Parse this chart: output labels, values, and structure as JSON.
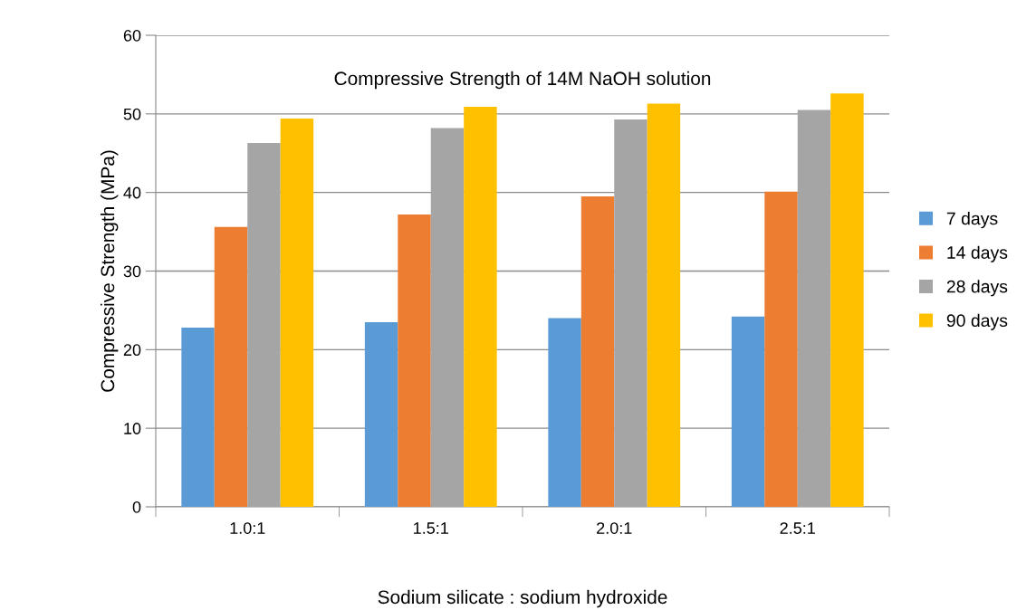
{
  "chart_data": {
    "type": "bar",
    "title": "Compressive Strength of 14M NaOH solution",
    "xlabel": "Sodium silicate : sodium hydroxide",
    "ylabel": "Compressive Strength (MPa)",
    "categories": [
      "1.0:1",
      "1.5:1",
      "2.0:1",
      "2.5:1"
    ],
    "series": [
      {
        "name": "7 days",
        "color": "#5b9bd5",
        "values": [
          22.8,
          23.5,
          24.0,
          24.2
        ]
      },
      {
        "name": "14 days",
        "color": "#ed7d31",
        "values": [
          35.6,
          37.2,
          39.5,
          40.1
        ]
      },
      {
        "name": "28 days",
        "color": "#a5a5a5",
        "values": [
          46.3,
          48.2,
          49.3,
          50.5
        ]
      },
      {
        "name": "90 days",
        "color": "#ffc000",
        "values": [
          49.4,
          50.9,
          51.3,
          52.6
        ]
      }
    ],
    "ylim": [
      0,
      60
    ],
    "yticks": [
      0,
      10,
      20,
      30,
      40,
      50,
      60
    ],
    "grid": "y",
    "legend": "right"
  }
}
